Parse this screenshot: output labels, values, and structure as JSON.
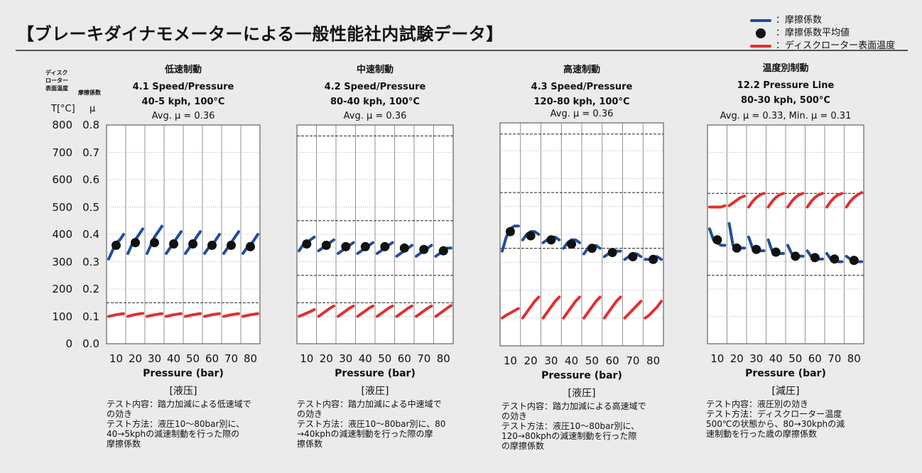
{
  "title": "【ブレーキダイナモメーターによる一般性能社内試験データ】",
  "legend": [
    {
      "label": "：摩擦係数",
      "marker": "line",
      "color": "#1f4e9c"
    },
    {
      "label": "：摩擦係数平均値",
      "marker": "dot",
      "color": "#111111"
    },
    {
      "label": "：ディスクローター表面温度",
      "marker": "line",
      "color": "#e03030"
    }
  ],
  "axis": {
    "temp_caption": "ディスク\nローター\n表面温度",
    "mu_caption": "摩擦係数",
    "temp_unit": "T[°C]",
    "mu_unit": "μ",
    "temp_ticks": [
      "800",
      "700",
      "600",
      "500",
      "400",
      "300",
      "200",
      "100",
      "0"
    ],
    "mu_ticks": [
      "0.8",
      "0.7",
      "0.6",
      "0.5",
      "0.4",
      "0.3",
      "0.2",
      "0.1",
      "0.0"
    ]
  },
  "colors": {
    "mu": "#1f4e9c",
    "temp": "#e03030",
    "avg": "#111111"
  },
  "chart_data": [
    {
      "type": "line",
      "heading": "低速制動",
      "test": "4.1 Speed/Pressure",
      "condition": "40-5 kph, 100°C",
      "avg_text": "Avg. μ = 0.36",
      "xlabel": "Pressure (bar)",
      "unit_label": "[液压]",
      "categories": [
        "10",
        "20",
        "30",
        "40",
        "50",
        "60",
        "70",
        "80"
      ],
      "ylim_mu": [
        0,
        0.8
      ],
      "ylim_temp": [
        0,
        800
      ],
      "series": [
        {
          "name": "：摩擦係数",
          "segments": [
            [
              0.31,
              0.34,
              0.37,
              0.38,
              0.4
            ],
            [
              0.33,
              0.36,
              0.38,
              0.4,
              0.42
            ],
            [
              0.33,
              0.36,
              0.39,
              0.41,
              0.43
            ],
            [
              0.33,
              0.35,
              0.37,
              0.39,
              0.41
            ],
            [
              0.33,
              0.35,
              0.37,
              0.39,
              0.41
            ],
            [
              0.33,
              0.35,
              0.36,
              0.38,
              0.4
            ],
            [
              0.33,
              0.35,
              0.37,
              0.39,
              0.41
            ],
            [
              0.33,
              0.35,
              0.36,
              0.38,
              0.4
            ]
          ]
        },
        {
          "name": "：摩擦係数平均値",
          "values": [
            0.36,
            0.37,
            0.37,
            0.365,
            0.365,
            0.36,
            0.36,
            0.355
          ]
        },
        {
          "name": "：ディスクローター表面温度",
          "segments": [
            [
              100,
              103,
              106,
              108,
              110
            ],
            [
              100,
              104,
              107,
              109,
              111
            ],
            [
              100,
              103,
              106,
              108,
              110
            ],
            [
              100,
              103,
              106,
              108,
              110
            ],
            [
              100,
              103,
              106,
              108,
              110
            ],
            [
              100,
              103,
              106,
              108,
              110
            ],
            [
              100,
              103,
              106,
              108,
              110
            ],
            [
              100,
              103,
              106,
              108,
              110
            ]
          ]
        }
      ],
      "mu_ref_lines": [],
      "temp_ref_lines": [
        150
      ],
      "note": "テスト内容：踏力加減による低速域で\nの効き\nテスト方法：液圧10～80bar別に、\n40→5kphの減速制動を行った際の\n摩擦係数"
    },
    {
      "type": "line",
      "heading": "中速制動",
      "test": "4.2 Speed/Pressure",
      "condition": "80-40 kph, 100°C",
      "avg_text": "Avg. μ = 0.36",
      "xlabel": "Pressure (bar)",
      "unit_label": "[液圧]",
      "categories": [
        "10",
        "20",
        "30",
        "40",
        "50",
        "60",
        "70",
        "80"
      ],
      "ylim_mu": [
        0,
        0.8
      ],
      "ylim_temp": [
        0,
        800
      ],
      "series": [
        {
          "name": "：摩擦係数",
          "segments": [
            [
              0.34,
              0.36,
              0.37,
              0.38,
              0.39
            ],
            [
              0.34,
              0.35,
              0.36,
              0.37,
              0.38
            ],
            [
              0.33,
              0.34,
              0.35,
              0.36,
              0.37
            ],
            [
              0.33,
              0.34,
              0.35,
              0.36,
              0.37
            ],
            [
              0.33,
              0.34,
              0.35,
              0.36,
              0.37
            ],
            [
              0.32,
              0.33,
              0.34,
              0.35,
              0.36
            ],
            [
              0.32,
              0.33,
              0.34,
              0.35,
              0.36
            ],
            [
              0.32,
              0.33,
              0.34,
              0.35,
              0.35
            ]
          ]
        },
        {
          "name": "：摩擦係数平均値",
          "values": [
            0.365,
            0.36,
            0.355,
            0.355,
            0.355,
            0.35,
            0.345,
            0.34
          ]
        },
        {
          "name": "：ディスクローター表面温度",
          "segments": [
            [
              100,
              106,
              112,
              118,
              125
            ],
            [
              100,
              110,
              120,
              130,
              138
            ],
            [
              100,
              110,
              120,
              130,
              138
            ],
            [
              100,
              110,
              120,
              130,
              138
            ],
            [
              100,
              110,
              120,
              130,
              138
            ],
            [
              100,
              110,
              120,
              130,
              138
            ],
            [
              100,
              110,
              120,
              130,
              138
            ],
            [
              100,
              110,
              120,
              130,
              140
            ]
          ]
        }
      ],
      "mu_ref_lines": [
        0.45,
        0.25
      ],
      "temp_ref_lines": [
        150,
        760
      ],
      "note": "テスト内容：踏力加減による中速域で\nの効き\nテスト方法：液圧10～80bar別に、80\n→40kphの減速制動を行った際の摩\n擦係数"
    },
    {
      "type": "line",
      "heading": "高速制動",
      "test": "4.3 Speed/Pressure",
      "condition": "120-80 kph, 100°C",
      "avg_text": "Avg. μ = 0.36",
      "xlabel": "Pressure (bar)",
      "unit_label": "[液圧]",
      "categories": [
        "10",
        "20",
        "30",
        "40",
        "50",
        "60",
        "70",
        "80"
      ],
      "ylim_mu": [
        0,
        0.8
      ],
      "ylim_temp": [
        0,
        800
      ],
      "series": [
        {
          "name": "：摩擦係数",
          "segments": [
            [
              0.34,
              0.39,
              0.42,
              0.43,
              0.43
            ],
            [
              0.38,
              0.4,
              0.41,
              0.41,
              0.4
            ],
            [
              0.37,
              0.38,
              0.39,
              0.39,
              0.38
            ],
            [
              0.35,
              0.37,
              0.38,
              0.38,
              0.37
            ],
            [
              0.33,
              0.35,
              0.36,
              0.36,
              0.35
            ],
            [
              0.32,
              0.33,
              0.34,
              0.34,
              0.34
            ],
            [
              0.31,
              0.32,
              0.33,
              0.33,
              0.32
            ],
            [
              0.31,
              0.31,
              0.32,
              0.32,
              0.31
            ]
          ]
        },
        {
          "name": "：摩擦係数平均値",
          "values": [
            0.41,
            0.395,
            0.38,
            0.365,
            0.35,
            0.335,
            0.32,
            0.31
          ]
        },
        {
          "name": "：ディスクローター表面温度",
          "segments": [
            [
              100,
              110,
              118,
              126,
              134
            ],
            [
              100,
              120,
              140,
              160,
              175
            ],
            [
              100,
              120,
              140,
              160,
              175
            ],
            [
              100,
              120,
              140,
              160,
              175
            ],
            [
              100,
              120,
              140,
              160,
              175
            ],
            [
              100,
              120,
              140,
              160,
              175
            ],
            [
              100,
              115,
              130,
              145,
              160
            ],
            [
              100,
              110,
              125,
              140,
              160
            ]
          ]
        }
      ],
      "mu_ref_lines": [
        0.55,
        0.35
      ],
      "temp_ref_lines": [
        760
      ],
      "note": "テスト内容：踏力加減による高速域で\nの効き\nテスト方法：液圧10～80bar別に、\n120→80kphの減速制動を行った際\nの摩擦係数"
    },
    {
      "type": "line",
      "heading": "温度別制動",
      "test": "12.2 Pressure Line",
      "condition": "80-30 kph, 500°C",
      "avg_text": "Avg. μ = 0.33, Min. μ = 0.31",
      "xlabel": "Pressure (bar)",
      "unit_label": "[減圧]",
      "categories": [
        "10",
        "20",
        "30",
        "40",
        "50",
        "60",
        "70",
        "80"
      ],
      "ylim_mu": [
        0,
        0.8
      ],
      "ylim_temp": [
        0,
        800
      ],
      "series": [
        {
          "name": "：摩擦係数",
          "segments": [
            [
              0.42,
              0.38,
              0.37,
              0.36,
              0.36
            ],
            [
              0.44,
              0.36,
              0.35,
              0.35,
              0.35
            ],
            [
              0.39,
              0.35,
              0.34,
              0.34,
              0.34
            ],
            [
              0.38,
              0.34,
              0.33,
              0.33,
              0.33
            ],
            [
              0.36,
              0.33,
              0.32,
              0.32,
              0.32
            ],
            [
              0.34,
              0.32,
              0.31,
              0.31,
              0.31
            ],
            [
              0.33,
              0.31,
              0.31,
              0.3,
              0.3
            ],
            [
              0.32,
              0.31,
              0.3,
              0.3,
              0.3
            ]
          ]
        },
        {
          "name": "：摩擦係数平均値",
          "values": [
            0.38,
            0.35,
            0.345,
            0.335,
            0.32,
            0.315,
            0.31,
            0.305
          ]
        },
        {
          "name": "：ディスクローター表面温度",
          "segments": [
            [
              500,
              500,
              500,
              500,
              505
            ],
            [
              505,
              515,
              525,
              535,
              540
            ],
            [
              500,
              520,
              535,
              545,
              550
            ],
            [
              500,
              520,
              535,
              545,
              550
            ],
            [
              500,
              520,
              535,
              545,
              550
            ],
            [
              500,
              520,
              535,
              545,
              550
            ],
            [
              500,
              520,
              535,
              545,
              550
            ],
            [
              500,
              520,
              535,
              545,
              553
            ]
          ]
        }
      ],
      "mu_ref_lines": [
        0.55,
        0.25
      ],
      "temp_ref_lines": [],
      "note": "テスト内容：液圧別の効き\nテスト方法：ディスクローター温度\n500℃の状態から、80→30kphの減\n速制動を行った歳の摩擦係数"
    }
  ]
}
